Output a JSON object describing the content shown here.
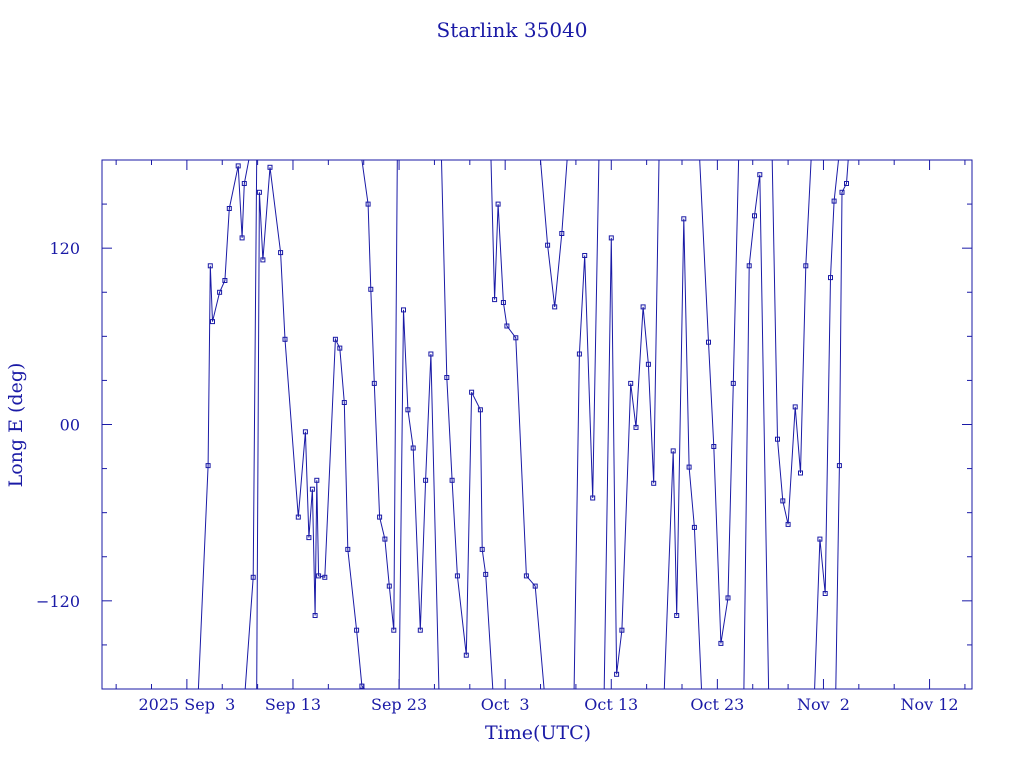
{
  "chart_data": {
    "type": "line",
    "title": "Starlink 35040",
    "xlabel": "Time(UTC)",
    "ylabel": "Long E (deg)",
    "xlim": [
      "2025-08-26",
      "2025-11-16"
    ],
    "ylim": [
      -180,
      180
    ],
    "x_ticks": [
      {
        "date": "2025-09-03",
        "label": "2025 Sep  3"
      },
      {
        "date": "2025-09-13",
        "label": "Sep 13"
      },
      {
        "date": "2025-09-23",
        "label": "Sep 23"
      },
      {
        "date": "2025-10-03",
        "label": "Oct  3"
      },
      {
        "date": "2025-10-13",
        "label": "Oct 13"
      },
      {
        "date": "2025-10-23",
        "label": "Oct 23"
      },
      {
        "date": "2025-11-02",
        "label": "Nov  2"
      },
      {
        "date": "2025-11-12",
        "label": "Nov 12"
      }
    ],
    "y_ticks": [
      {
        "value": 120,
        "label": "120"
      },
      {
        "value": 0,
        "label": "00"
      },
      {
        "value": -120,
        "label": "−120"
      }
    ],
    "grid": false,
    "color": "#1a1aa6",
    "series": [
      {
        "points": [
          [
            "2025-09-04T02:00",
            -180
          ],
          [
            "2025-09-05T00:00",
            -28
          ],
          [
            "2025-09-05T05:00",
            108
          ],
          [
            "2025-09-05T10:00",
            70
          ],
          [
            "2025-09-06T02:00",
            90
          ],
          [
            "2025-09-06T14:00",
            98
          ],
          [
            "2025-09-07T00:00",
            147
          ],
          [
            "2025-09-07T20:00",
            176
          ],
          [
            "2025-09-08T05:00",
            127
          ],
          [
            "2025-09-08T10:00",
            164
          ],
          [
            "2025-09-08T20:00",
            180
          ]
        ]
      },
      {
        "points": [
          [
            "2025-09-08T12:00",
            -180
          ],
          [
            "2025-09-09T06:00",
            -104
          ],
          [
            "2025-09-09T14:00",
            180
          ]
        ]
      },
      {
        "points": [
          [
            "2025-09-09T14:00",
            -180
          ],
          [
            "2025-09-09T20:00",
            158
          ],
          [
            "2025-09-10T04:00",
            112
          ],
          [
            "2025-09-10T20:00",
            175
          ],
          [
            "2025-09-11T20:00",
            117
          ],
          [
            "2025-09-12T06:00",
            58
          ],
          [
            "2025-09-13T12:00",
            -63
          ],
          [
            "2025-09-14T04:00",
            -5
          ],
          [
            "2025-09-14T12:00",
            -77
          ],
          [
            "2025-09-14T20:00",
            -44
          ],
          [
            "2025-09-15T02:00",
            -130
          ],
          [
            "2025-09-15T06:00",
            -38
          ],
          [
            "2025-09-15T10:00",
            -103
          ],
          [
            "2025-09-16T00:00",
            -104
          ],
          [
            "2025-09-17T00:00",
            58
          ],
          [
            "2025-09-17T10:00",
            52
          ],
          [
            "2025-09-17T20:00",
            15
          ],
          [
            "2025-09-18T04:00",
            -85
          ],
          [
            "2025-09-19T00:00",
            -140
          ],
          [
            "2025-09-19T12:00",
            -178
          ],
          [
            "2025-09-19T18:00",
            -180
          ]
        ]
      },
      {
        "points": [
          [
            "2025-09-19T12:00",
            180
          ],
          [
            "2025-09-20T02:00",
            150
          ],
          [
            "2025-09-20T08:00",
            92
          ],
          [
            "2025-09-20T16:00",
            28
          ],
          [
            "2025-09-21T04:00",
            -63
          ],
          [
            "2025-09-21T16:00",
            -78
          ],
          [
            "2025-09-22T02:00",
            -110
          ],
          [
            "2025-09-22T12:00",
            -140
          ],
          [
            "2025-09-22T20:00",
            180
          ]
        ]
      },
      {
        "points": [
          [
            "2025-09-23T00:00",
            -180
          ],
          [
            "2025-09-23T10:00",
            78
          ],
          [
            "2025-09-23T20:00",
            10
          ],
          [
            "2025-09-24T08:00",
            -16
          ],
          [
            "2025-09-25T00:00",
            -140
          ],
          [
            "2025-09-25T12:00",
            -38
          ],
          [
            "2025-09-26T00:00",
            48
          ],
          [
            "2025-09-26T18:00",
            -180
          ]
        ]
      },
      {
        "points": [
          [
            "2025-09-27T00:00",
            180
          ],
          [
            "2025-09-27T12:00",
            32
          ],
          [
            "2025-09-28T00:00",
            -38
          ],
          [
            "2025-09-28T12:00",
            -103
          ],
          [
            "2025-09-29T08:00",
            -157
          ],
          [
            "2025-09-29T20:00",
            22
          ],
          [
            "2025-09-30T16:00",
            10
          ],
          [
            "2025-09-30T20:00",
            -85
          ],
          [
            "2025-10-01T04:00",
            -102
          ],
          [
            "2025-10-01T20:00",
            -180
          ]
        ]
      },
      {
        "points": [
          [
            "2025-10-01T16:00",
            180
          ],
          [
            "2025-10-02T00:00",
            85
          ],
          [
            "2025-10-02T08:00",
            150
          ],
          [
            "2025-10-02T20:00",
            83
          ],
          [
            "2025-10-03T04:00",
            67
          ],
          [
            "2025-10-04T00:00",
            59
          ],
          [
            "2025-10-05T00:00",
            -103
          ],
          [
            "2025-10-05T20:00",
            -110
          ],
          [
            "2025-10-06T16:00",
            -180
          ]
        ]
      },
      {
        "points": [
          [
            "2025-10-06T08:00",
            180
          ],
          [
            "2025-10-07T00:00",
            122
          ],
          [
            "2025-10-07T16:00",
            80
          ],
          [
            "2025-10-08T08:00",
            130
          ],
          [
            "2025-10-08T20:00",
            180
          ]
        ]
      },
      {
        "points": [
          [
            "2025-10-09T12:00",
            -180
          ],
          [
            "2025-10-10T00:00",
            48
          ],
          [
            "2025-10-10T12:00",
            115
          ],
          [
            "2025-10-11T06:00",
            -50
          ],
          [
            "2025-10-11T20:00",
            180
          ]
        ]
      },
      {
        "points": [
          [
            "2025-10-12T08:00",
            -180
          ],
          [
            "2025-10-13T00:00",
            127
          ],
          [
            "2025-10-13T12:00",
            -170
          ],
          [
            "2025-10-14T00:00",
            -140
          ],
          [
            "2025-10-14T20:00",
            28
          ],
          [
            "2025-10-15T08:00",
            -2
          ],
          [
            "2025-10-16T00:00",
            80
          ],
          [
            "2025-10-16T12:00",
            41
          ],
          [
            "2025-10-17T00:00",
            -40
          ],
          [
            "2025-10-17T12:00",
            180
          ]
        ]
      },
      {
        "points": [
          [
            "2025-10-18T00:00",
            -180
          ],
          [
            "2025-10-18T20:00",
            -18
          ],
          [
            "2025-10-19T04:00",
            -130
          ],
          [
            "2025-10-19T20:00",
            140
          ],
          [
            "2025-10-20T08:00",
            -29
          ],
          [
            "2025-10-20T20:00",
            -70
          ],
          [
            "2025-10-21T12:00",
            -180
          ]
        ]
      },
      {
        "points": [
          [
            "2025-10-21T08:00",
            180
          ],
          [
            "2025-10-22T04:00",
            56
          ],
          [
            "2025-10-22T16:00",
            -15
          ],
          [
            "2025-10-23T08:00",
            -149
          ],
          [
            "2025-10-24T00:00",
            -118
          ],
          [
            "2025-10-24T12:00",
            28
          ],
          [
            "2025-10-25T00:00",
            180
          ]
        ]
      },
      {
        "points": [
          [
            "2025-10-25T12:00",
            -180
          ],
          [
            "2025-10-26T00:00",
            108
          ],
          [
            "2025-10-26T12:00",
            142
          ],
          [
            "2025-10-27T00:00",
            170
          ],
          [
            "2025-10-27T20:00",
            -180
          ]
        ]
      },
      {
        "points": [
          [
            "2025-10-28T04:00",
            180
          ],
          [
            "2025-10-28T16:00",
            -10
          ],
          [
            "2025-10-29T04:00",
            -52
          ],
          [
            "2025-10-29T16:00",
            -68
          ],
          [
            "2025-10-30T08:00",
            12
          ],
          [
            "2025-10-30T20:00",
            -33
          ],
          [
            "2025-10-31T08:00",
            108
          ],
          [
            "2025-10-31T20:00",
            180
          ]
        ]
      },
      {
        "points": [
          [
            "2025-11-01T04:00",
            -180
          ],
          [
            "2025-11-01T16:00",
            -78
          ],
          [
            "2025-11-02T04:00",
            -115
          ],
          [
            "2025-11-02T16:00",
            100
          ],
          [
            "2025-11-03T00:00",
            152
          ],
          [
            "2025-11-03T10:00",
            180
          ]
        ]
      },
      {
        "points": [
          [
            "2025-11-03T04:00",
            -180
          ],
          [
            "2025-11-03T12:00",
            -28
          ],
          [
            "2025-11-03T18:00",
            158
          ],
          [
            "2025-11-04T04:00",
            164
          ],
          [
            "2025-11-04T08:00",
            180
          ]
        ]
      }
    ]
  }
}
